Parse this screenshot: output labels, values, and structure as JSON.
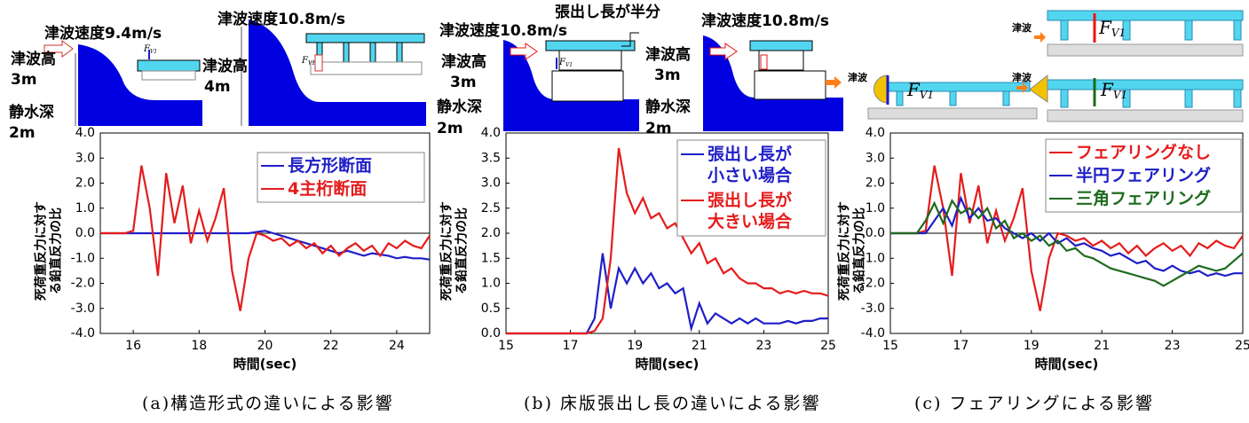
{
  "chart_data": [
    {
      "type": "line",
      "caption": "(a)構造形式の違いによる影響",
      "xlabel": "時間(sec)",
      "ylabel": "死荷重反力に対する鉛直反力の比",
      "xlim": [
        15,
        25
      ],
      "xticks": [
        16,
        18,
        20,
        22,
        24
      ],
      "ylim": [
        -4,
        4
      ],
      "yticks": [
        {
          "value": -4,
          "label": "-4.0"
        },
        {
          "value": -3,
          "label": "-3.0"
        },
        {
          "value": -2,
          "label": "-2.0"
        },
        {
          "value": -1,
          "label": "-1.0"
        },
        {
          "value": 0,
          "label": "0.0"
        },
        {
          "value": 1,
          "label": "1.0"
        },
        {
          "value": 2,
          "label": "2.0"
        },
        {
          "value": 3,
          "label": "3.0"
        },
        {
          "value": 4,
          "label": "4.0"
        }
      ],
      "hline": 0,
      "x": [
        15,
        15.25,
        15.5,
        15.75,
        16,
        16.25,
        16.5,
        16.75,
        17,
        17.25,
        17.5,
        17.75,
        18,
        18.25,
        18.5,
        18.75,
        19,
        19.25,
        19.5,
        19.75,
        20,
        20.25,
        20.5,
        20.75,
        21,
        21.25,
        21.5,
        21.75,
        22,
        22.25,
        22.5,
        22.75,
        23,
        23.25,
        23.5,
        23.75,
        24,
        24.25,
        24.5,
        24.75,
        25
      ],
      "series": [
        {
          "name": "長方形断面",
          "color": "#1f1fc8",
          "values": [
            0,
            0,
            0,
            0,
            0,
            0,
            0,
            0,
            0,
            0,
            0,
            0,
            0,
            0,
            0,
            0,
            0,
            0,
            0,
            0.05,
            0.1,
            0,
            -0.1,
            -0.2,
            -0.3,
            -0.4,
            -0.5,
            -0.6,
            -0.7,
            -0.8,
            -0.7,
            -0.8,
            -0.9,
            -0.8,
            -0.85,
            -0.9,
            -1.0,
            -0.95,
            -1.0,
            -1.0,
            -1.05
          ]
        },
        {
          "name": "4主桁断面",
          "color": "#e51c1c",
          "values": [
            0,
            0,
            0,
            0,
            0.1,
            2.7,
            1.0,
            -1.7,
            2.4,
            0.4,
            1.9,
            -0.4,
            0.9,
            -0.3,
            0.6,
            1.8,
            -1.5,
            -3.1,
            -1.0,
            0.0,
            -0.1,
            -0.3,
            -0.2,
            -0.5,
            -0.3,
            -0.6,
            -0.4,
            -0.8,
            -0.5,
            -0.9,
            -0.6,
            -0.4,
            -0.7,
            -0.5,
            -0.9,
            -0.4,
            -0.6,
            -0.3,
            -0.5,
            -0.6,
            -0.1
          ]
        }
      ]
    },
    {
      "type": "line",
      "caption": "(b) 床版張出し長の違いによる影響",
      "xlabel": "時間(sec)",
      "ylabel": "死荷重反力に対する鉛直反力の比",
      "xlim": [
        15,
        25
      ],
      "xticks": [
        15,
        17,
        19,
        21,
        23,
        25
      ],
      "ylim": [
        0,
        4
      ],
      "yticks": [
        {
          "value": 0,
          "label": "0.0"
        },
        {
          "value": 0.5,
          "label": "0.5"
        },
        {
          "value": 1,
          "label": "1.0"
        },
        {
          "value": 1.5,
          "label": "1.5"
        },
        {
          "value": 2,
          "label": "2.0"
        },
        {
          "value": 2.5,
          "label": "2.5"
        },
        {
          "value": 3,
          "label": "3.0"
        },
        {
          "value": 3.5,
          "label": "3.5"
        },
        {
          "value": 4,
          "label": "4.0"
        }
      ],
      "x": [
        15,
        15.25,
        15.5,
        15.75,
        16,
        16.25,
        16.5,
        16.75,
        17,
        17.25,
        17.5,
        17.75,
        18,
        18.25,
        18.5,
        18.75,
        19,
        19.25,
        19.5,
        19.75,
        20,
        20.25,
        20.5,
        20.75,
        21,
        21.25,
        21.5,
        21.75,
        22,
        22.25,
        22.5,
        22.75,
        23,
        23.25,
        23.5,
        23.75,
        24,
        24.25,
        24.5,
        24.75,
        25
      ],
      "series": [
        {
          "name": "張出し長が小さい場合",
          "color": "#1f1fc8",
          "values": [
            0,
            0,
            0,
            0,
            0,
            0,
            0,
            0,
            0,
            0,
            0,
            0.3,
            1.6,
            0.5,
            1.3,
            1.0,
            1.3,
            1.0,
            1.2,
            0.9,
            1.0,
            0.8,
            0.9,
            0.1,
            0.6,
            0.2,
            0.4,
            0.3,
            0.2,
            0.3,
            0.2,
            0.3,
            0.2,
            0.2,
            0.2,
            0.25,
            0.2,
            0.25,
            0.25,
            0.3,
            0.3
          ]
        },
        {
          "name": "張出し長が大きい場合",
          "color": "#e51c1c",
          "values": [
            0,
            0,
            0,
            0,
            0,
            0,
            0,
            0,
            0,
            0,
            0,
            0.05,
            0.3,
            1.5,
            3.7,
            2.8,
            2.4,
            2.7,
            2.3,
            2.4,
            2.1,
            2.2,
            1.9,
            1.6,
            1.8,
            1.4,
            1.5,
            1.2,
            1.3,
            1.1,
            1.0,
            1.0,
            0.9,
            0.9,
            0.8,
            0.85,
            0.8,
            0.85,
            0.8,
            0.8,
            0.75
          ]
        }
      ]
    },
    {
      "type": "line",
      "caption": "(c) フェアリングによる影響",
      "xlabel": "時間(sec)",
      "ylabel": "死荷重反力に対する鉛直反力の比",
      "xlim": [
        15,
        25
      ],
      "xticks": [
        15,
        17,
        19,
        21,
        23,
        25
      ],
      "ylim": [
        -4,
        4
      ],
      "yticks": [
        {
          "value": -4,
          "label": "-4.0"
        },
        {
          "value": -3,
          "label": "-3.0"
        },
        {
          "value": -2,
          "label": "-2.0"
        },
        {
          "value": -1,
          "label": "-1.0"
        },
        {
          "value": 0,
          "label": "0.0"
        },
        {
          "value": 1,
          "label": "1.0"
        },
        {
          "value": 2,
          "label": "2.0"
        },
        {
          "value": 3,
          "label": "3.0"
        },
        {
          "value": 4,
          "label": "4.0"
        }
      ],
      "hline": 0,
      "x": [
        15,
        15.25,
        15.5,
        15.75,
        16,
        16.25,
        16.5,
        16.75,
        17,
        17.25,
        17.5,
        17.75,
        18,
        18.25,
        18.5,
        18.75,
        19,
        19.25,
        19.5,
        19.75,
        20,
        20.25,
        20.5,
        20.75,
        21,
        21.25,
        21.5,
        21.75,
        22,
        22.25,
        22.5,
        22.75,
        23,
        23.25,
        23.5,
        23.75,
        24,
        24.25,
        24.5,
        24.75,
        25
      ],
      "series": [
        {
          "name": "フェアリングなし",
          "color": "#e51c1c",
          "values": [
            0,
            0,
            0,
            0,
            0.1,
            2.7,
            1.0,
            -1.7,
            2.4,
            0.4,
            1.9,
            -0.4,
            0.9,
            -0.3,
            0.6,
            1.8,
            -1.5,
            -3.1,
            -1.0,
            0.0,
            -0.1,
            -0.3,
            -0.2,
            -0.5,
            -0.3,
            -0.6,
            -0.4,
            -0.8,
            -0.5,
            -0.9,
            -0.6,
            -0.4,
            -0.7,
            -0.5,
            -0.9,
            -0.4,
            -0.6,
            -0.3,
            -0.5,
            -0.6,
            -0.1
          ]
        },
        {
          "name": "半円フェアリング",
          "color": "#1f1fc8",
          "values": [
            0,
            0,
            0,
            0,
            0,
            0.5,
            1.0,
            0.3,
            1.4,
            0.6,
            1.0,
            0.5,
            0.6,
            0.2,
            0.0,
            -0.2,
            0.0,
            -0.3,
            0.0,
            -0.4,
            -0.2,
            -0.5,
            -0.4,
            -0.6,
            -0.7,
            -0.9,
            -0.8,
            -1.0,
            -1.2,
            -1.1,
            -1.4,
            -1.5,
            -1.3,
            -1.5,
            -1.6,
            -1.5,
            -1.7,
            -1.6,
            -1.7,
            -1.6,
            -1.6
          ]
        },
        {
          "name": "三角フェアリング",
          "color": "#1e6b1e",
          "values": [
            0,
            0,
            0,
            0,
            0.5,
            1.2,
            0.4,
            1.3,
            0.8,
            1.0,
            0.6,
            1.0,
            0.2,
            0.5,
            -0.2,
            0.0,
            -0.3,
            -0.1,
            -0.5,
            -0.3,
            -0.7,
            -0.6,
            -0.9,
            -1.0,
            -1.2,
            -1.4,
            -1.5,
            -1.6,
            -1.7,
            -1.8,
            -1.9,
            -2.1,
            -1.9,
            -1.7,
            -1.5,
            -1.3,
            -1.4,
            -1.5,
            -1.4,
            -1.1,
            -0.8
          ]
        }
      ]
    }
  ],
  "diagrams": {
    "labels": [
      "津波速度9.4m/s",
      "津波高",
      "3m",
      "静水深",
      "2m",
      "津波速度10.8m/s",
      "津波高",
      "4m",
      "張出し長が半分",
      "津波速度10.8m/s",
      "津波高",
      "3m",
      "静水深",
      "2m",
      "津波速度10.8m/s",
      "津波高",
      "3m",
      "静水深",
      "2m",
      "津波",
      "F",
      "V1"
    ]
  }
}
